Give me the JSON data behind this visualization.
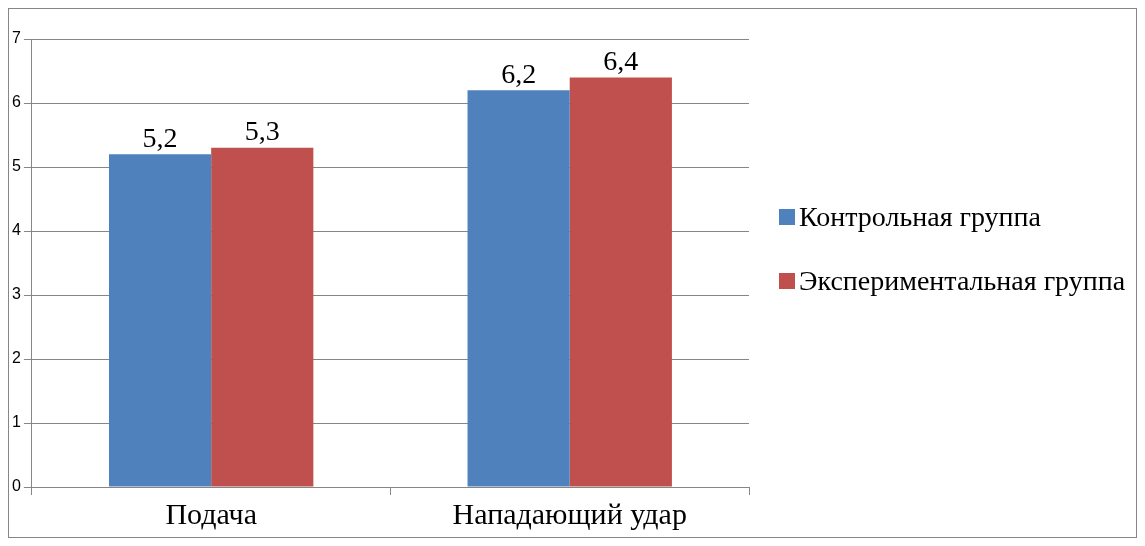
{
  "chart_data": {
    "type": "bar",
    "categories": [
      "Подача",
      "Нападающий удар"
    ],
    "series": [
      {
        "name": "Контрольная группа",
        "color": "#4f81bd",
        "values": [
          5.2,
          6.2
        ],
        "value_labels": [
          "5,2",
          "6,2"
        ]
      },
      {
        "name": "Экспериментальная группа",
        "color": "#c0504d",
        "values": [
          5.3,
          6.4
        ],
        "value_labels": [
          "5,3",
          "6,4"
        ]
      }
    ],
    "ylim": [
      0,
      7
    ],
    "yticks": [
      0,
      1,
      2,
      3,
      4,
      5,
      6,
      7
    ],
    "grid": "y",
    "legend": "right"
  }
}
